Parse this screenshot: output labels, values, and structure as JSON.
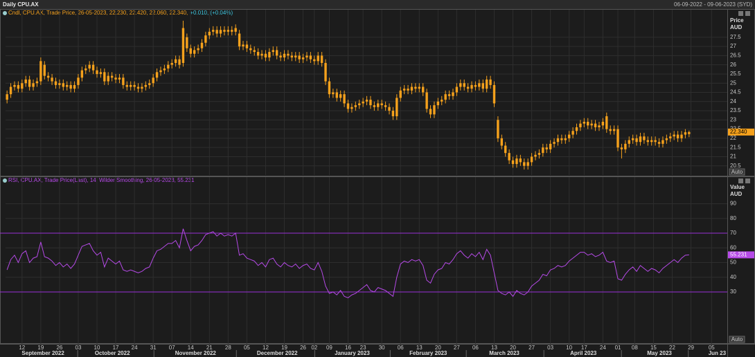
{
  "header": {
    "title": "Daily CPU.AX",
    "range": "06-09-2022 - 09-06-2023 (SYD)"
  },
  "chart_data": [
    {
      "type": "candlestick",
      "legend": "Cndl, CPU.AX, Trade Price, 26-05-2023, 22.230, 22.420, 22.060, 22.340,",
      "legend_change": "+0.010, (+0.04%)",
      "axis_title": [
        "Price",
        "AUD"
      ],
      "last_label": "22.340",
      "auto_label": "Auto",
      "color": "#f5a11c",
      "xlim": [
        -0.4,
        192.2
      ],
      "ylim": [
        20,
        29
      ],
      "yticks": [
        20.5,
        21,
        21.5,
        22,
        22.5,
        23,
        23.5,
        24,
        24.5,
        25,
        25.5,
        26,
        26.5,
        27,
        27.5
      ],
      "grid": true,
      "open": [
        24.1,
        24.4,
        24.8,
        24.9,
        24.7,
        25.0,
        25.2,
        24.8,
        25.0,
        25.1,
        26.0,
        25.4,
        25.3,
        25.1,
        24.9,
        25.0,
        24.8,
        24.9,
        24.7,
        24.9,
        25.3,
        25.7,
        25.8,
        26.0,
        25.7,
        25.5,
        25.6,
        25.1,
        25.4,
        25.3,
        25.2,
        25.3,
        24.9,
        24.8,
        24.9,
        24.8,
        24.7,
        24.8,
        24.9,
        25.0,
        25.3,
        25.6,
        25.7,
        25.8,
        26.0,
        26.1,
        26.3,
        26.1,
        27.5,
        26.9,
        26.6,
        26.8,
        26.9,
        27.2,
        27.6,
        27.8,
        27.9,
        27.7,
        27.9,
        27.8,
        27.9,
        27.8,
        27.7,
        27.0,
        27.1,
        26.9,
        26.8,
        26.7,
        26.5,
        26.6,
        26.4,
        26.7,
        26.8,
        26.5,
        26.4,
        26.6,
        26.5,
        26.4,
        26.5,
        26.3,
        26.4,
        26.5,
        26.3,
        26.2,
        26.5,
        26.1,
        25.1,
        24.4,
        24.5,
        24.2,
        24.4,
        23.9,
        23.6,
        23.7,
        23.8,
        23.9,
        24.0,
        24.1,
        23.8,
        23.7,
        23.9,
        23.8,
        23.7,
        23.5,
        23.2,
        24.2,
        24.6,
        24.7,
        24.6,
        24.8,
        24.7,
        24.8,
        24.5,
        23.6,
        23.3,
        23.8,
        24.0,
        24.1,
        24.4,
        24.3,
        24.5,
        24.8,
        25.0,
        24.8,
        24.7,
        24.9,
        24.8,
        25.0,
        24.7,
        25.2,
        24.9,
        23.0,
        22.0,
        21.6,
        21.2,
        20.8,
        20.6,
        20.9,
        20.7,
        20.5,
        20.7,
        21.0,
        21.1,
        21.2,
        21.5,
        21.4,
        21.7,
        21.8,
        22.0,
        21.9,
        22.0,
        22.2,
        22.4,
        22.6,
        22.8,
        22.9,
        22.7,
        22.8,
        22.6,
        22.7,
        23.2,
        22.5,
        22.4,
        22.5,
        21.5,
        21.4,
        21.7,
        21.9,
        22.0,
        21.8,
        22.1,
        21.9,
        21.8,
        21.9,
        21.8,
        21.7,
        21.9,
        22.0,
        22.1,
        22.2,
        22.0,
        22.2,
        22.23
      ],
      "high": [
        24.6,
        25.0,
        25.1,
        25.1,
        25.2,
        25.4,
        25.4,
        25.2,
        25.3,
        26.4,
        26.2,
        25.6,
        25.5,
        25.3,
        25.2,
        25.2,
        25.1,
        25.1,
        25.1,
        25.5,
        25.9,
        26.0,
        26.2,
        26.2,
        25.9,
        25.8,
        25.8,
        25.6,
        25.6,
        25.5,
        25.5,
        25.5,
        25.1,
        25.1,
        25.1,
        25.0,
        25.0,
        25.1,
        25.2,
        25.5,
        25.8,
        25.9,
        26.0,
        26.2,
        26.3,
        26.5,
        26.5,
        28.4,
        27.7,
        27.1,
        27.0,
        27.1,
        27.4,
        27.8,
        28.0,
        28.1,
        28.1,
        28.1,
        28.1,
        28.1,
        28.1,
        28.2,
        27.9,
        27.3,
        27.3,
        27.1,
        27.0,
        26.9,
        26.8,
        26.8,
        26.9,
        27.0,
        27.0,
        26.7,
        26.8,
        26.8,
        26.7,
        26.7,
        26.7,
        26.6,
        26.7,
        26.7,
        26.5,
        26.7,
        26.7,
        26.3,
        25.3,
        24.7,
        24.7,
        24.6,
        24.6,
        24.1,
        23.9,
        24.0,
        24.1,
        24.2,
        24.3,
        24.3,
        24.0,
        24.1,
        24.1,
        24.0,
        23.9,
        23.7,
        24.4,
        24.8,
        24.9,
        24.9,
        25.0,
        25.0,
        25.0,
        25.0,
        24.7,
        23.8,
        24.0,
        24.2,
        24.3,
        24.6,
        24.6,
        24.7,
        25.0,
        25.2,
        25.2,
        25.0,
        25.1,
        25.1,
        25.2,
        25.2,
        25.4,
        25.4,
        25.1,
        23.2,
        22.2,
        21.8,
        21.4,
        21.0,
        21.1,
        21.1,
        20.9,
        20.9,
        21.2,
        21.3,
        21.4,
        21.7,
        21.7,
        21.9,
        22.0,
        22.2,
        22.2,
        22.2,
        22.4,
        22.6,
        22.8,
        23.0,
        23.1,
        23.1,
        23.0,
        23.0,
        22.9,
        23.1,
        23.4,
        22.7,
        22.7,
        22.7,
        21.7,
        21.9,
        22.1,
        22.2,
        22.2,
        22.3,
        22.3,
        22.1,
        22.1,
        22.1,
        22.0,
        22.1,
        22.2,
        22.3,
        22.4,
        22.4,
        22.4,
        22.5,
        22.42
      ],
      "low": [
        23.9,
        24.2,
        24.6,
        24.5,
        24.5,
        24.8,
        24.6,
        24.6,
        24.8,
        24.9,
        25.2,
        25.1,
        24.9,
        24.7,
        24.7,
        24.6,
        24.6,
        24.5,
        24.5,
        24.7,
        25.1,
        25.5,
        25.6,
        25.5,
        25.3,
        25.3,
        24.9,
        24.9,
        25.1,
        25.0,
        25.0,
        24.7,
        24.6,
        24.6,
        24.6,
        24.5,
        24.5,
        24.6,
        24.7,
        24.8,
        25.1,
        25.4,
        25.5,
        25.6,
        25.8,
        25.9,
        25.8,
        25.9,
        26.7,
        26.4,
        26.4,
        26.6,
        26.7,
        27.0,
        27.4,
        27.6,
        27.5,
        27.5,
        27.6,
        27.6,
        27.6,
        27.6,
        26.8,
        26.8,
        26.7,
        26.6,
        26.5,
        26.3,
        26.3,
        26.2,
        26.2,
        26.5,
        26.3,
        26.2,
        26.2,
        26.3,
        26.2,
        26.2,
        26.1,
        26.1,
        26.2,
        26.1,
        26.0,
        26.0,
        25.9,
        24.9,
        24.2,
        24.2,
        24.0,
        24.0,
        23.7,
        23.4,
        23.4,
        23.5,
        23.6,
        23.7,
        23.8,
        23.6,
        23.5,
        23.5,
        23.6,
        23.5,
        23.3,
        23.0,
        23.0,
        24.0,
        24.4,
        24.4,
        24.4,
        24.5,
        24.5,
        24.3,
        23.4,
        23.1,
        23.1,
        23.6,
        23.8,
        23.9,
        24.1,
        24.1,
        24.3,
        24.6,
        24.6,
        24.5,
        24.5,
        24.6,
        24.6,
        24.5,
        24.5,
        24.7,
        23.7,
        21.8,
        21.4,
        21.0,
        20.6,
        20.4,
        20.4,
        20.5,
        20.3,
        20.3,
        20.5,
        20.8,
        20.9,
        21.0,
        21.2,
        21.2,
        21.5,
        21.6,
        21.7,
        21.7,
        21.8,
        22.0,
        22.2,
        22.4,
        22.6,
        22.5,
        22.5,
        22.4,
        22.4,
        22.5,
        22.3,
        22.2,
        22.2,
        21.3,
        20.9,
        21.2,
        21.5,
        21.7,
        21.6,
        21.6,
        21.7,
        21.6,
        21.6,
        21.6,
        21.5,
        21.5,
        21.7,
        21.8,
        21.9,
        21.8,
        21.8,
        22.0,
        22.06
      ],
      "close": [
        24.4,
        24.8,
        24.9,
        24.7,
        25.0,
        25.2,
        24.8,
        25.0,
        25.1,
        26.2,
        25.4,
        25.3,
        25.1,
        24.9,
        25.0,
        24.8,
        24.9,
        24.7,
        24.9,
        25.3,
        25.7,
        25.8,
        26.0,
        25.7,
        25.5,
        25.6,
        25.1,
        25.4,
        25.3,
        25.2,
        25.3,
        24.9,
        24.8,
        24.9,
        24.8,
        24.7,
        24.8,
        24.9,
        25.0,
        25.3,
        25.6,
        25.7,
        25.8,
        26.0,
        26.1,
        26.3,
        26.0,
        28.0,
        26.9,
        26.6,
        26.8,
        26.9,
        27.2,
        27.6,
        27.8,
        27.9,
        27.7,
        27.9,
        27.8,
        27.9,
        27.8,
        28.0,
        27.0,
        27.1,
        26.9,
        26.8,
        26.7,
        26.5,
        26.6,
        26.4,
        26.7,
        26.8,
        26.5,
        26.4,
        26.6,
        26.5,
        26.4,
        26.5,
        26.3,
        26.4,
        26.5,
        26.3,
        26.2,
        26.5,
        26.1,
        25.1,
        24.4,
        24.5,
        24.2,
        24.4,
        23.9,
        23.6,
        23.7,
        23.8,
        23.9,
        24.0,
        24.1,
        23.8,
        23.7,
        23.9,
        23.8,
        23.7,
        23.5,
        23.2,
        24.2,
        24.6,
        24.7,
        24.6,
        24.8,
        24.7,
        24.8,
        24.5,
        23.6,
        23.3,
        23.8,
        24.0,
        24.1,
        24.4,
        24.3,
        24.5,
        24.8,
        25.0,
        24.8,
        24.7,
        24.9,
        24.8,
        25.0,
        24.7,
        25.2,
        24.9,
        23.9,
        22.0,
        21.6,
        21.2,
        20.8,
        20.6,
        20.9,
        20.7,
        20.5,
        20.7,
        21.0,
        21.1,
        21.2,
        21.5,
        21.4,
        21.7,
        21.8,
        22.0,
        21.9,
        22.0,
        22.2,
        22.4,
        22.6,
        22.8,
        22.9,
        22.7,
        22.8,
        22.6,
        22.7,
        22.9,
        22.5,
        22.4,
        22.5,
        21.5,
        21.4,
        21.7,
        21.9,
        22.0,
        21.8,
        22.1,
        21.9,
        21.8,
        21.9,
        21.8,
        21.7,
        21.9,
        22.0,
        22.1,
        22.2,
        22.0,
        22.2,
        22.33,
        22.34
      ]
    },
    {
      "type": "line",
      "legend": "RSI, CPU.AX, Trade Price(Last), 14, Wilder Smoothing, 26-05-2023, 55.231",
      "axis_title": [
        "Value",
        "AUD"
      ],
      "last_label": "55.231",
      "auto_label": "Auto",
      "color": "#b64ae8",
      "band_color": "#9a2fd8",
      "bands": [
        30,
        70
      ],
      "xlim": [
        -0.4,
        192.2
      ],
      "ylim": [
        -5.3,
        108.1
      ],
      "yticks": [
        30,
        40,
        50,
        60,
        70,
        80,
        90
      ],
      "grid": true,
      "values": [
        45,
        52,
        55,
        50,
        56,
        58,
        50,
        53,
        54,
        64,
        54,
        53,
        51,
        48,
        50,
        47,
        49,
        46,
        49,
        55,
        61,
        62,
        63,
        58,
        55,
        57,
        47,
        53,
        51,
        49,
        51,
        45,
        44,
        45,
        44,
        43,
        44,
        46,
        47,
        53,
        58,
        59,
        61,
        63,
        63,
        65,
        60,
        73,
        65,
        58,
        61,
        62,
        65,
        69,
        70,
        71,
        68,
        70,
        68,
        69,
        68,
        70,
        55,
        56,
        53,
        52,
        51,
        48,
        50,
        47,
        52,
        53,
        49,
        47,
        50,
        48,
        47,
        49,
        46,
        48,
        49,
        46,
        45,
        50,
        44,
        34,
        29,
        30,
        28,
        31,
        27,
        26,
        28,
        29,
        31,
        33,
        35,
        31,
        30,
        33,
        32,
        31,
        29,
        27,
        40,
        49,
        51,
        50,
        52,
        51,
        52,
        48,
        38,
        36,
        42,
        45,
        46,
        50,
        49,
        52,
        56,
        58,
        55,
        53,
        56,
        54,
        57,
        52,
        59,
        55,
        43,
        31,
        29,
        28,
        30,
        27,
        31,
        29,
        28,
        30,
        34,
        36,
        38,
        42,
        41,
        45,
        46,
        48,
        47,
        48,
        51,
        53,
        55,
        57,
        57,
        55,
        56,
        54,
        55,
        57,
        51,
        50,
        51,
        39,
        38,
        42,
        45,
        47,
        44,
        48,
        46,
        44,
        46,
        45,
        43,
        46,
        48,
        50,
        52,
        50,
        53,
        55,
        55.231
      ],
      "xticks": [
        {
          "value": 4,
          "label": "12"
        },
        {
          "value": 9,
          "label": "19"
        },
        {
          "value": 14,
          "label": "26"
        },
        {
          "value": 19,
          "label": "03"
        },
        {
          "value": 24,
          "label": "10"
        },
        {
          "value": 29,
          "label": "17"
        },
        {
          "value": 34,
          "label": "24"
        },
        {
          "value": 39,
          "label": "31"
        },
        {
          "value": 44,
          "label": "07"
        },
        {
          "value": 49,
          "label": "14"
        },
        {
          "value": 54,
          "label": "21"
        },
        {
          "value": 59,
          "label": "28"
        },
        {
          "value": 64,
          "label": "05"
        },
        {
          "value": 69,
          "label": "12"
        },
        {
          "value": 74,
          "label": "19"
        },
        {
          "value": 79,
          "label": "26"
        },
        {
          "value": 82,
          "label": "02"
        },
        {
          "value": 86,
          "label": "09"
        },
        {
          "value": 91,
          "label": "16"
        },
        {
          "value": 95,
          "label": "23"
        },
        {
          "value": 100,
          "label": "30"
        },
        {
          "value": 105,
          "label": "06"
        },
        {
          "value": 110,
          "label": "13"
        },
        {
          "value": 115,
          "label": "20"
        },
        {
          "value": 120,
          "label": "27"
        },
        {
          "value": 125,
          "label": "06"
        },
        {
          "value": 130,
          "label": "13"
        },
        {
          "value": 135,
          "label": "20"
        },
        {
          "value": 140,
          "label": "27"
        },
        {
          "value": 145,
          "label": "03"
        },
        {
          "value": 150,
          "label": "10"
        },
        {
          "value": 154,
          "label": "17"
        },
        {
          "value": 159,
          "label": "24"
        },
        {
          "value": 163,
          "label": "01"
        },
        {
          "value": 167.5,
          "label": "08"
        },
        {
          "value": 172.5,
          "label": "15"
        },
        {
          "value": 177.5,
          "label": "22"
        },
        {
          "value": 182.5,
          "label": "29"
        },
        {
          "value": 188,
          "label": "05"
        }
      ],
      "months": [
        {
          "value": 9.6,
          "label": "September 2022"
        },
        {
          "value": 28.1,
          "label": "October 2022"
        },
        {
          "value": 50.3,
          "label": "November 2022"
        },
        {
          "value": 72.1,
          "label": "December 2022"
        },
        {
          "value": 92.1,
          "label": "January 2023"
        },
        {
          "value": 112.4,
          "label": "February 2023"
        },
        {
          "value": 132.7,
          "label": "March 2023"
        },
        {
          "value": 153.8,
          "label": "April 2023"
        },
        {
          "value": 174.1,
          "label": "May 2023"
        },
        {
          "value": 189.5,
          "label": "Jun 23"
        }
      ]
    }
  ]
}
